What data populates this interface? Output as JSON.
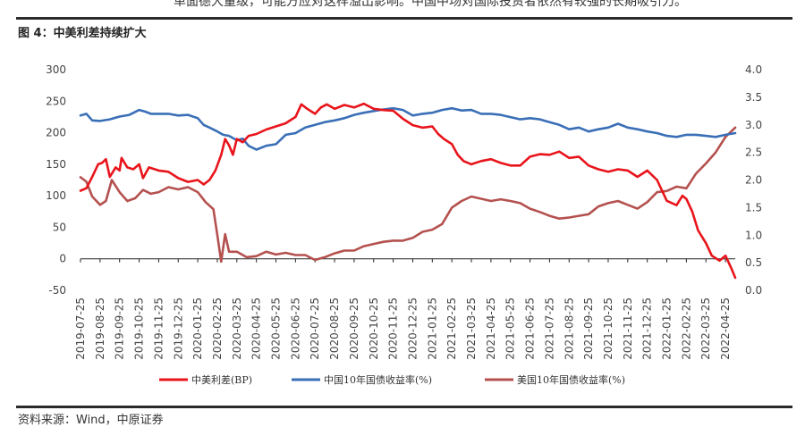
{
  "header": {
    "intro_text": "单面德大量级，可能方应对这样溢出影响。中国中场对国际投资者依然有较强的长期吸引力。",
    "figure_title": "图 4：中美利差持续扩大",
    "source_text": "资料来源：Wind，中原证券"
  },
  "chart_data": {
    "type": "line",
    "title": "中美利差持续扩大",
    "left_axis": {
      "ylim": [
        -50,
        300
      ],
      "ticks": [
        300,
        250,
        200,
        150,
        100,
        50,
        0,
        -50
      ]
    },
    "right_axis": {
      "ylim": [
        0.0,
        4.0
      ],
      "ticks": [
        "4.0",
        "3.5",
        "3.0",
        "2.5",
        "2.0",
        "1.5",
        "1.0",
        "0.5",
        "0.0"
      ]
    },
    "x_categories": [
      "2019-07-25",
      "2019-08-25",
      "2019-09-25",
      "2019-10-25",
      "2019-11-25",
      "2019-12-25",
      "2020-01-25",
      "2020-02-25",
      "2020-03-25",
      "2020-04-25",
      "2020-05-25",
      "2020-06-25",
      "2020-07-25",
      "2020-08-25",
      "2020-09-25",
      "2020-10-25",
      "2020-11-25",
      "2020-12-25",
      "2021-01-25",
      "2021-02-25",
      "2021-03-25",
      "2021-04-25",
      "2021-05-25",
      "2021-06-25",
      "2021-07-25",
      "2021-08-25",
      "2021-09-25",
      "2021-10-25",
      "2021-11-25",
      "2021-12-25",
      "2022-01-25",
      "2022-02-25",
      "2022-03-25",
      "2022-04-25"
    ],
    "legend_position": "bottom",
    "grid": false,
    "series": [
      {
        "name": "中美利差(BP)",
        "axis": "left",
        "color": "#e8141b",
        "points": [
          [
            0,
            108
          ],
          [
            0.3,
            112
          ],
          [
            0.6,
            130
          ],
          [
            0.9,
            150
          ],
          [
            1.1,
            152
          ],
          [
            1.3,
            158
          ],
          [
            1.5,
            130
          ],
          [
            1.8,
            145
          ],
          [
            2.0,
            140
          ],
          [
            2.1,
            160
          ],
          [
            2.4,
            145
          ],
          [
            2.7,
            142
          ],
          [
            3.0,
            150
          ],
          [
            3.2,
            128
          ],
          [
            3.5,
            145
          ],
          [
            4.0,
            140
          ],
          [
            4.5,
            138
          ],
          [
            5.0,
            128
          ],
          [
            5.5,
            122
          ],
          [
            6.0,
            125
          ],
          [
            6.3,
            118
          ],
          [
            6.6,
            125
          ],
          [
            6.9,
            140
          ],
          [
            7.2,
            165
          ],
          [
            7.4,
            190
          ],
          [
            7.6,
            180
          ],
          [
            7.8,
            165
          ],
          [
            8.0,
            190
          ],
          [
            8.3,
            185
          ],
          [
            8.6,
            195
          ],
          [
            9.0,
            198
          ],
          [
            9.5,
            205
          ],
          [
            10.0,
            210
          ],
          [
            10.5,
            215
          ],
          [
            11.0,
            225
          ],
          [
            11.3,
            245
          ],
          [
            11.6,
            238
          ],
          [
            12.0,
            230
          ],
          [
            12.3,
            240
          ],
          [
            12.6,
            245
          ],
          [
            13.0,
            238
          ],
          [
            13.5,
            244
          ],
          [
            14.0,
            240
          ],
          [
            14.5,
            246
          ],
          [
            15.0,
            238
          ],
          [
            15.5,
            236
          ],
          [
            16.0,
            235
          ],
          [
            16.5,
            222
          ],
          [
            17.0,
            212
          ],
          [
            17.5,
            208
          ],
          [
            18.0,
            210
          ],
          [
            18.3,
            198
          ],
          [
            18.6,
            190
          ],
          [
            19.0,
            182
          ],
          [
            19.3,
            165
          ],
          [
            19.6,
            155
          ],
          [
            20.0,
            150
          ],
          [
            20.5,
            155
          ],
          [
            21.0,
            158
          ],
          [
            21.5,
            152
          ],
          [
            22.0,
            148
          ],
          [
            22.5,
            148
          ],
          [
            23.0,
            162
          ],
          [
            23.5,
            166
          ],
          [
            24.0,
            165
          ],
          [
            24.5,
            170
          ],
          [
            25.0,
            160
          ],
          [
            25.5,
            162
          ],
          [
            26.0,
            148
          ],
          [
            26.5,
            142
          ],
          [
            27.0,
            138
          ],
          [
            27.5,
            142
          ],
          [
            28.0,
            140
          ],
          [
            28.5,
            130
          ],
          [
            29.0,
            140
          ],
          [
            29.5,
            125
          ],
          [
            30.0,
            92
          ],
          [
            30.5,
            85
          ],
          [
            30.8,
            100
          ],
          [
            31.0,
            95
          ],
          [
            31.3,
            75
          ],
          [
            31.6,
            45
          ],
          [
            32.0,
            25
          ],
          [
            32.3,
            5
          ],
          [
            32.7,
            -3
          ],
          [
            33.0,
            5
          ],
          [
            33.3,
            -15
          ],
          [
            33.5,
            -30
          ]
        ]
      },
      {
        "name": "中国10年国债收益率(%)",
        "axis": "right",
        "color": "#3a6fb7",
        "points": [
          [
            0,
            3.17
          ],
          [
            0.3,
            3.2
          ],
          [
            0.6,
            3.08
          ],
          [
            1.0,
            3.07
          ],
          [
            1.5,
            3.1
          ],
          [
            2.0,
            3.15
          ],
          [
            2.5,
            3.18
          ],
          [
            3.0,
            3.27
          ],
          [
            3.3,
            3.24
          ],
          [
            3.6,
            3.2
          ],
          [
            4.0,
            3.2
          ],
          [
            4.5,
            3.2
          ],
          [
            5.0,
            3.17
          ],
          [
            5.5,
            3.18
          ],
          [
            6.0,
            3.12
          ],
          [
            6.3,
            3.0
          ],
          [
            6.6,
            2.95
          ],
          [
            7.0,
            2.88
          ],
          [
            7.3,
            2.82
          ],
          [
            7.6,
            2.8
          ],
          [
            8.0,
            2.72
          ],
          [
            8.3,
            2.75
          ],
          [
            8.6,
            2.62
          ],
          [
            9.0,
            2.55
          ],
          [
            9.5,
            2.62
          ],
          [
            10.0,
            2.65
          ],
          [
            10.5,
            2.82
          ],
          [
            11.0,
            2.85
          ],
          [
            11.5,
            2.95
          ],
          [
            12.0,
            3.0
          ],
          [
            12.5,
            3.05
          ],
          [
            13.0,
            3.08
          ],
          [
            13.5,
            3.12
          ],
          [
            14.0,
            3.18
          ],
          [
            14.5,
            3.22
          ],
          [
            15.0,
            3.25
          ],
          [
            15.5,
            3.28
          ],
          [
            16.0,
            3.3
          ],
          [
            16.5,
            3.27
          ],
          [
            17.0,
            3.17
          ],
          [
            17.5,
            3.2
          ],
          [
            18.0,
            3.22
          ],
          [
            18.5,
            3.27
          ],
          [
            19.0,
            3.3
          ],
          [
            19.5,
            3.26
          ],
          [
            20.0,
            3.27
          ],
          [
            20.5,
            3.2
          ],
          [
            21.0,
            3.2
          ],
          [
            21.5,
            3.18
          ],
          [
            22.0,
            3.14
          ],
          [
            22.5,
            3.1
          ],
          [
            23.0,
            3.12
          ],
          [
            23.5,
            3.1
          ],
          [
            24.0,
            3.05
          ],
          [
            24.5,
            3.0
          ],
          [
            25.0,
            2.92
          ],
          [
            25.5,
            2.95
          ],
          [
            26.0,
            2.88
          ],
          [
            26.5,
            2.92
          ],
          [
            27.0,
            2.95
          ],
          [
            27.5,
            3.02
          ],
          [
            28.0,
            2.95
          ],
          [
            28.5,
            2.92
          ],
          [
            29.0,
            2.88
          ],
          [
            29.5,
            2.85
          ],
          [
            30.0,
            2.8
          ],
          [
            30.5,
            2.78
          ],
          [
            31.0,
            2.82
          ],
          [
            31.5,
            2.82
          ],
          [
            32.0,
            2.8
          ],
          [
            32.5,
            2.78
          ],
          [
            33.0,
            2.82
          ],
          [
            33.5,
            2.85
          ]
        ]
      },
      {
        "name": "美国10年国债收益率(%)",
        "axis": "right",
        "color": "#b4514f",
        "points": [
          [
            0,
            2.05
          ],
          [
            0.3,
            1.97
          ],
          [
            0.6,
            1.7
          ],
          [
            1.0,
            1.55
          ],
          [
            1.3,
            1.62
          ],
          [
            1.6,
            2.0
          ],
          [
            2.0,
            1.78
          ],
          [
            2.4,
            1.62
          ],
          [
            2.8,
            1.67
          ],
          [
            3.2,
            1.82
          ],
          [
            3.6,
            1.75
          ],
          [
            4.0,
            1.78
          ],
          [
            4.5,
            1.87
          ],
          [
            5.0,
            1.83
          ],
          [
            5.5,
            1.87
          ],
          [
            6.0,
            1.78
          ],
          [
            6.4,
            1.6
          ],
          [
            6.8,
            1.47
          ],
          [
            7.0,
            1.0
          ],
          [
            7.2,
            0.52
          ],
          [
            7.4,
            1.02
          ],
          [
            7.6,
            0.7
          ],
          [
            8.0,
            0.7
          ],
          [
            8.5,
            0.6
          ],
          [
            9.0,
            0.62
          ],
          [
            9.5,
            0.7
          ],
          [
            10.0,
            0.65
          ],
          [
            10.5,
            0.68
          ],
          [
            11.0,
            0.64
          ],
          [
            11.5,
            0.64
          ],
          [
            12.0,
            0.55
          ],
          [
            12.5,
            0.6
          ],
          [
            13.0,
            0.67
          ],
          [
            13.5,
            0.72
          ],
          [
            14.0,
            0.72
          ],
          [
            14.5,
            0.8
          ],
          [
            15.0,
            0.84
          ],
          [
            15.5,
            0.88
          ],
          [
            16.0,
            0.9
          ],
          [
            16.5,
            0.9
          ],
          [
            17.0,
            0.95
          ],
          [
            17.5,
            1.06
          ],
          [
            18.0,
            1.1
          ],
          [
            18.5,
            1.2
          ],
          [
            19.0,
            1.5
          ],
          [
            19.5,
            1.62
          ],
          [
            20.0,
            1.7
          ],
          [
            20.5,
            1.66
          ],
          [
            21.0,
            1.62
          ],
          [
            21.5,
            1.65
          ],
          [
            22.0,
            1.62
          ],
          [
            22.5,
            1.58
          ],
          [
            23.0,
            1.48
          ],
          [
            23.5,
            1.42
          ],
          [
            24.0,
            1.35
          ],
          [
            24.5,
            1.3
          ],
          [
            25.0,
            1.32
          ],
          [
            25.5,
            1.35
          ],
          [
            26.0,
            1.38
          ],
          [
            26.5,
            1.52
          ],
          [
            27.0,
            1.58
          ],
          [
            27.5,
            1.62
          ],
          [
            28.0,
            1.55
          ],
          [
            28.5,
            1.48
          ],
          [
            29.0,
            1.6
          ],
          [
            29.5,
            1.78
          ],
          [
            30.0,
            1.8
          ],
          [
            30.5,
            1.88
          ],
          [
            31.0,
            1.85
          ],
          [
            31.5,
            2.12
          ],
          [
            32.0,
            2.3
          ],
          [
            32.5,
            2.5
          ],
          [
            33.0,
            2.78
          ],
          [
            33.5,
            2.95
          ]
        ]
      }
    ]
  }
}
